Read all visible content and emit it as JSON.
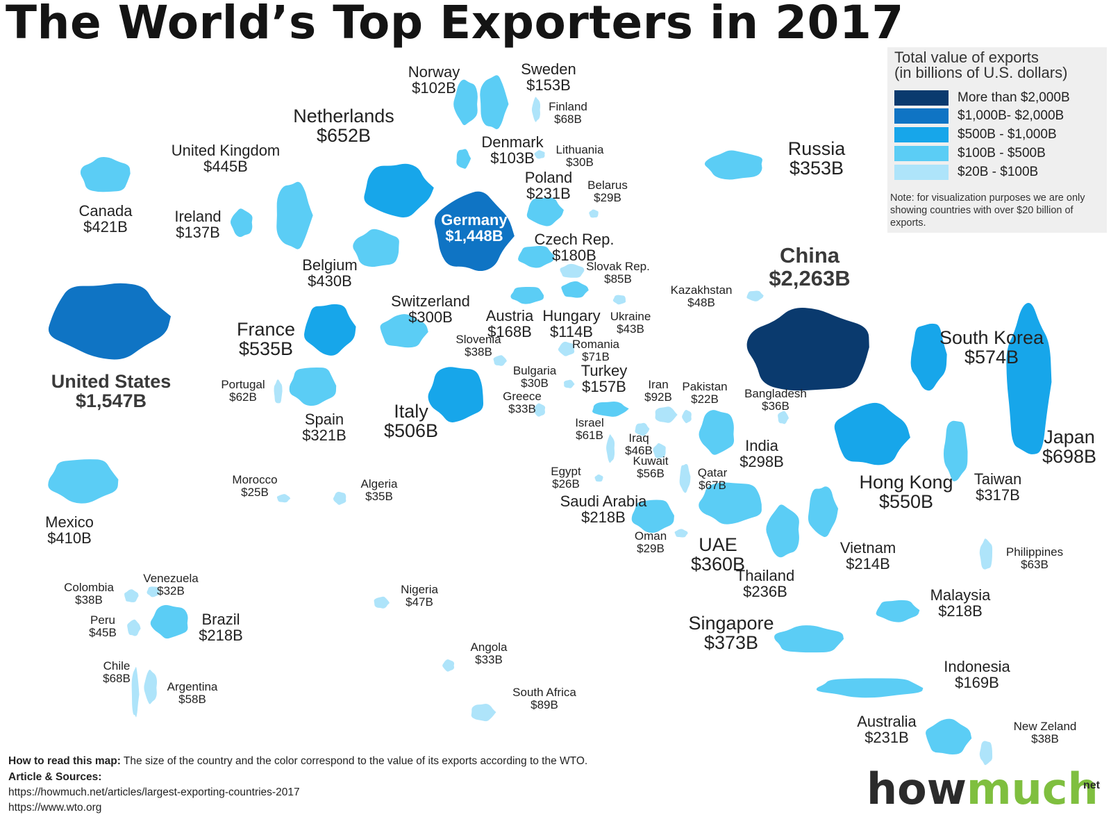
{
  "title": "The World’s Top Exporters in 2017",
  "legend": {
    "title_line1": "Total value of exports",
    "title_line2": "(in billions of U.S. dollars)",
    "items": [
      {
        "label": "More than $2,000B",
        "color": "#0a3a6e"
      },
      {
        "label": "$1,000B- $2,000B",
        "color": "#0f74c4"
      },
      {
        "label": "$500B - $1,000B",
        "color": "#17a6ea"
      },
      {
        "label": "$100B - $500B",
        "color": "#5bcdf5"
      },
      {
        "label": "$20B - $100B",
        "color": "#aee4fa"
      }
    ],
    "note": "Note: for visualization purposes we are only showing countries with over $20 billion of exports."
  },
  "countries": [
    {
      "name": "United States",
      "value": "$1,547B"
    },
    {
      "name": "Canada",
      "value": "$421B"
    },
    {
      "name": "Mexico",
      "value": "$410B"
    },
    {
      "name": "Colombia",
      "value": "$38B"
    },
    {
      "name": "Venezuela",
      "value": "$32B"
    },
    {
      "name": "Peru",
      "value": "$45B"
    },
    {
      "name": "Brazil",
      "value": "$218B"
    },
    {
      "name": "Chile",
      "value": "$68B"
    },
    {
      "name": "Argentina",
      "value": "$58B"
    },
    {
      "name": "United Kingdom",
      "value": "$445B"
    },
    {
      "name": "Ireland",
      "value": "$137B"
    },
    {
      "name": "Netherlands",
      "value": "$652B"
    },
    {
      "name": "Belgium",
      "value": "$430B"
    },
    {
      "name": "France",
      "value": "$535B"
    },
    {
      "name": "Portugal",
      "value": "$62B"
    },
    {
      "name": "Spain",
      "value": "$321B"
    },
    {
      "name": "Switzerland",
      "value": "$300B"
    },
    {
      "name": "Italy",
      "value": "$506B"
    },
    {
      "name": "Germany",
      "value": "$1,448B"
    },
    {
      "name": "Norway",
      "value": "$102B"
    },
    {
      "name": "Sweden",
      "value": "$153B"
    },
    {
      "name": "Finland",
      "value": "$68B"
    },
    {
      "name": "Denmark",
      "value": "$103B"
    },
    {
      "name": "Lithuania",
      "value": "$30B"
    },
    {
      "name": "Poland",
      "value": "$231B"
    },
    {
      "name": "Belarus",
      "value": "$29B"
    },
    {
      "name": "Czech Rep.",
      "value": "$180B"
    },
    {
      "name": "Slovak Rep.",
      "value": "$85B"
    },
    {
      "name": "Austria",
      "value": "$168B"
    },
    {
      "name": "Hungary",
      "value": "$114B"
    },
    {
      "name": "Ukraine",
      "value": "$43B"
    },
    {
      "name": "Slovenia",
      "value": "$38B"
    },
    {
      "name": "Romania",
      "value": "$71B"
    },
    {
      "name": "Bulgaria",
      "value": "$30B"
    },
    {
      "name": "Greece",
      "value": "$33B"
    },
    {
      "name": "Turkey",
      "value": "$157B"
    },
    {
      "name": "Russia",
      "value": "$353B"
    },
    {
      "name": "Kazakhstan",
      "value": "$48B"
    },
    {
      "name": "China",
      "value": "$2,263B"
    },
    {
      "name": "South Korea",
      "value": "$574B"
    },
    {
      "name": "Japan",
      "value": "$698B"
    },
    {
      "name": "Taiwan",
      "value": "$317B"
    },
    {
      "name": "Hong Kong",
      "value": "$550B"
    },
    {
      "name": "India",
      "value": "$298B"
    },
    {
      "name": "Bangladesh",
      "value": "$36B"
    },
    {
      "name": "Pakistan",
      "value": "$22B"
    },
    {
      "name": "Iran",
      "value": "$92B"
    },
    {
      "name": "Israel",
      "value": "$61B"
    },
    {
      "name": "Iraq",
      "value": "$46B"
    },
    {
      "name": "Kuwait",
      "value": "$56B"
    },
    {
      "name": "Qatar",
      "value": "$67B"
    },
    {
      "name": "Egypt",
      "value": "$26B"
    },
    {
      "name": "Saudi Arabia",
      "value": "$218B"
    },
    {
      "name": "Oman",
      "value": "$29B"
    },
    {
      "name": "UAE",
      "value": "$360B"
    },
    {
      "name": "Morocco",
      "value": "$25B"
    },
    {
      "name": "Algeria",
      "value": "$35B"
    },
    {
      "name": "Nigeria",
      "value": "$47B"
    },
    {
      "name": "Angola",
      "value": "$33B"
    },
    {
      "name": "South Africa",
      "value": "$89B"
    },
    {
      "name": "Thailand",
      "value": "$236B"
    },
    {
      "name": "Vietnam",
      "value": "$214B"
    },
    {
      "name": "Philippines",
      "value": "$63B"
    },
    {
      "name": "Malaysia",
      "value": "$218B"
    },
    {
      "name": "Singapore",
      "value": "$373B"
    },
    {
      "name": "Indonesia",
      "value": "$169B"
    },
    {
      "name": "Australia",
      "value": "$231B"
    },
    {
      "name": "New Zeland",
      "value": "$38B"
    }
  ],
  "footer": {
    "how_label": "How to read this map:",
    "how_text": " The size of the country and the color correspond to the value of its exports according to the WTO.",
    "sources_label": "Article & Sources:",
    "source1": "https://howmuch.net/articles/largest-exporting-countries-2017",
    "source2": "https://www.wto.org"
  },
  "logo": {
    "part1": "how",
    "part2": "much",
    "suffix": "net"
  }
}
